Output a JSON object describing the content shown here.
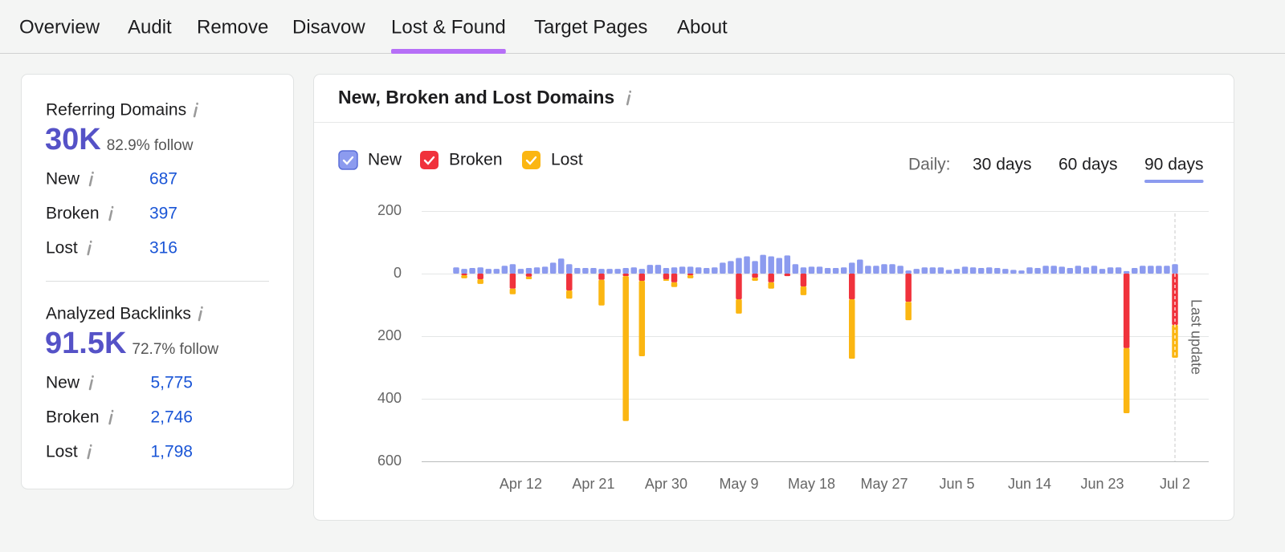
{
  "tabs": [
    "Overview",
    "Audit",
    "Remove",
    "Disavow",
    "Lost & Found",
    "Target Pages",
    "About"
  ],
  "summary": [
    {
      "title": "Referring Domains",
      "value": "30K",
      "follow": "82.9% follow",
      "rows": [
        {
          "label": "New",
          "value": "687"
        },
        {
          "label": "Broken",
          "value": "397"
        },
        {
          "label": "Lost",
          "value": "316"
        }
      ]
    },
    {
      "title": "Analyzed Backlinks",
      "value": "91.5K",
      "follow": "72.7% follow",
      "rows": [
        {
          "label": "New",
          "value": "5,775"
        },
        {
          "label": "Broken",
          "value": "2,746"
        },
        {
          "label": "Lost",
          "value": "1,798"
        }
      ]
    }
  ],
  "period_label": "Daily:",
  "periods": [
    "30 days",
    "60 days",
    "90 days"
  ],
  "chart_data": {
    "type": "bar",
    "title": "New, Broken and Lost Domains",
    "annotation": "Last update",
    "stacked": true,
    "grid": true,
    "categories": [
      null,
      null,
      null,
      null,
      null,
      null,
      null,
      null,
      "Apr 12",
      null,
      null,
      null,
      null,
      null,
      null,
      null,
      null,
      "Apr 21",
      null,
      null,
      null,
      null,
      null,
      null,
      null,
      null,
      "Apr 30",
      null,
      null,
      null,
      null,
      null,
      null,
      null,
      null,
      "May 9",
      null,
      null,
      null,
      null,
      null,
      null,
      null,
      null,
      "May 18",
      null,
      null,
      null,
      null,
      null,
      null,
      null,
      null,
      "May 27",
      null,
      null,
      null,
      null,
      null,
      null,
      null,
      null,
      "Jun 5",
      null,
      null,
      null,
      null,
      null,
      null,
      null,
      null,
      "Jun 14",
      null,
      null,
      null,
      null,
      null,
      null,
      null,
      null,
      "Jun 23",
      null,
      null,
      null,
      null,
      null,
      null,
      null,
      null,
      "Jul 2"
    ],
    "series": [
      {
        "name": "New",
        "color": "#8c9bef",
        "values": [
          20,
          15,
          18,
          20,
          15,
          15,
          25,
          30,
          15,
          18,
          20,
          22,
          35,
          48,
          30,
          18,
          18,
          18,
          15,
          15,
          15,
          18,
          20,
          15,
          28,
          28,
          18,
          20,
          22,
          22,
          20,
          18,
          20,
          35,
          40,
          50,
          55,
          40,
          60,
          55,
          50,
          58,
          30,
          20,
          22,
          22,
          18,
          18,
          20,
          35,
          45,
          25,
          25,
          30,
          30,
          25,
          10,
          15,
          20,
          20,
          20,
          12,
          15,
          22,
          20,
          18,
          20,
          18,
          15,
          12,
          10,
          20,
          18,
          25,
          25,
          22,
          18,
          25,
          20,
          25,
          15,
          20,
          20,
          8,
          18,
          25,
          25,
          25,
          25,
          30
        ]
      },
      {
        "name": "Broken",
        "color": "#f0323c",
        "values": [
          0,
          -5,
          0,
          -18,
          0,
          0,
          0,
          -48,
          0,
          -10,
          0,
          0,
          0,
          0,
          -54,
          0,
          0,
          0,
          -20,
          0,
          0,
          -8,
          0,
          -23,
          0,
          0,
          -18,
          -28,
          0,
          -5,
          0,
          0,
          0,
          0,
          0,
          -82,
          0,
          -13,
          0,
          -28,
          0,
          -8,
          0,
          -41,
          0,
          0,
          0,
          0,
          0,
          -82,
          0,
          0,
          0,
          0,
          0,
          0,
          -90,
          0,
          0,
          0,
          0,
          0,
          0,
          0,
          0,
          0,
          0,
          0,
          0,
          0,
          0,
          0,
          0,
          0,
          0,
          0,
          0,
          0,
          0,
          0,
          0,
          0,
          0,
          -238,
          0,
          0,
          0,
          0,
          0,
          -164
        ]
      },
      {
        "name": "Lost",
        "color": "#fbb612",
        "values": [
          0,
          -10,
          0,
          -15,
          0,
          0,
          0,
          -18,
          0,
          -8,
          0,
          0,
          0,
          0,
          -26,
          0,
          0,
          0,
          -82,
          0,
          0,
          -463,
          0,
          -241,
          0,
          0,
          -5,
          -15,
          0,
          -10,
          0,
          0,
          0,
          0,
          0,
          -46,
          0,
          -10,
          0,
          -20,
          0,
          0,
          0,
          -28,
          0,
          0,
          0,
          0,
          0,
          -190,
          0,
          0,
          0,
          0,
          0,
          0,
          -59,
          0,
          0,
          0,
          0,
          0,
          0,
          0,
          0,
          0,
          0,
          0,
          0,
          0,
          0,
          0,
          0,
          0,
          0,
          0,
          0,
          0,
          0,
          0,
          0,
          0,
          0,
          -208,
          0,
          0,
          0,
          0,
          0,
          -105
        ]
      }
    ],
    "ylim": [
      -600,
      200
    ],
    "yticks": [
      200,
      0,
      {
        "value": -200,
        "label": "200"
      },
      {
        "value": -400,
        "label": "400"
      },
      {
        "value": -600,
        "label": "600"
      }
    ]
  }
}
